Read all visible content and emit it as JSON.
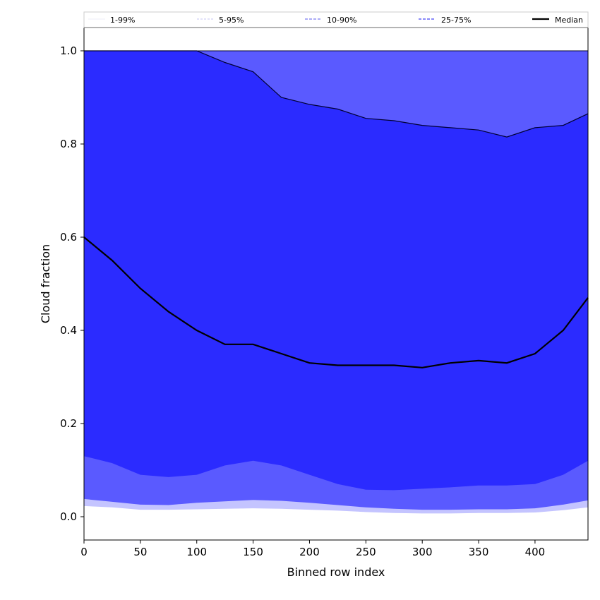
{
  "chart_data": {
    "type": "area",
    "title": "",
    "xlabel": "Binned row index",
    "ylabel": "Cloud fraction",
    "xlim": [
      0,
      447
    ],
    "ylim": [
      -0.05,
      1.05
    ],
    "x_ticks": [
      0,
      50,
      100,
      150,
      200,
      250,
      300,
      350,
      400
    ],
    "y_ticks": [
      0.0,
      0.2,
      0.4,
      0.6,
      0.8,
      1.0
    ],
    "y_tick_labels": [
      "0.0",
      "0.2",
      "0.4",
      "0.6",
      "0.8",
      "1.0"
    ],
    "grid": false,
    "legend_placement": "top (full-width row above plot)",
    "legend": [
      {
        "label": "1-99%",
        "style": "solid-thin",
        "color": "#e6e6f5"
      },
      {
        "label": "5-95%",
        "style": "dashed-thin",
        "color": "#b4b4f0"
      },
      {
        "label": "10-90%",
        "style": "dashed",
        "color": "#7a7af2"
      },
      {
        "label": "25-75%",
        "style": "dashed",
        "color": "#4545f5"
      },
      {
        "label": "Median",
        "style": "solid-thick",
        "color": "#000000"
      }
    ],
    "colors": {
      "band_1_99": "#ffffff",
      "band_5_95": "#c4c4ff",
      "band_10_90": "#5a5aff",
      "band_25_75": "#2b2bff",
      "median": "#000000"
    },
    "x": [
      0,
      25,
      50,
      75,
      100,
      125,
      150,
      175,
      200,
      225,
      250,
      275,
      300,
      325,
      350,
      375,
      400,
      425,
      447
    ],
    "series": [
      {
        "name": "Median",
        "values": [
          0.6,
          0.55,
          0.49,
          0.44,
          0.4,
          0.37,
          0.37,
          0.35,
          0.33,
          0.325,
          0.325,
          0.325,
          0.32,
          0.33,
          0.335,
          0.33,
          0.35,
          0.4,
          0.47
        ]
      },
      {
        "name": "25-75%",
        "lower": [
          0.13,
          0.115,
          0.09,
          0.085,
          0.09,
          0.11,
          0.12,
          0.11,
          0.09,
          0.07,
          0.058,
          0.057,
          0.06,
          0.063,
          0.067,
          0.067,
          0.07,
          0.09,
          0.12
        ],
        "upper": [
          1.0,
          1.0,
          1.0,
          1.0,
          1.0,
          0.975,
          0.955,
          0.9,
          0.885,
          0.875,
          0.855,
          0.85,
          0.84,
          0.835,
          0.83,
          0.815,
          0.835,
          0.84,
          0.865
        ]
      },
      {
        "name": "10-90%",
        "lower": [
          0.038,
          0.032,
          0.026,
          0.025,
          0.03,
          0.033,
          0.036,
          0.034,
          0.03,
          0.025,
          0.02,
          0.017,
          0.015,
          0.015,
          0.016,
          0.016,
          0.018,
          0.026,
          0.035
        ],
        "upper": [
          1.0,
          1.0,
          1.0,
          1.0,
          1.0,
          1.0,
          1.0,
          1.0,
          1.0,
          1.0,
          1.0,
          1.0,
          1.0,
          1.0,
          1.0,
          1.0,
          1.0,
          1.0,
          1.0
        ]
      },
      {
        "name": "5-95%",
        "lower": [
          0.023,
          0.02,
          0.015,
          0.015,
          0.016,
          0.017,
          0.018,
          0.017,
          0.015,
          0.013,
          0.01,
          0.008,
          0.007,
          0.007,
          0.008,
          0.008,
          0.009,
          0.014,
          0.02
        ],
        "upper": [
          1.0,
          1.0,
          1.0,
          1.0,
          1.0,
          1.0,
          1.0,
          1.0,
          1.0,
          1.0,
          1.0,
          1.0,
          1.0,
          1.0,
          1.0,
          1.0,
          1.0,
          1.0,
          1.0
        ]
      },
      {
        "name": "1-99%",
        "lower": [
          0.008,
          0.008,
          0.006,
          0.006,
          0.007,
          0.007,
          0.007,
          0.007,
          0.006,
          0.005,
          0.004,
          0.003,
          0.002,
          0.002,
          0.003,
          0.003,
          0.003,
          0.005,
          0.008
        ],
        "upper": [
          1.0,
          1.0,
          1.0,
          1.0,
          1.0,
          1.0,
          1.0,
          1.0,
          1.0,
          1.0,
          1.0,
          1.0,
          1.0,
          1.0,
          1.0,
          1.0,
          1.0,
          1.0,
          1.0
        ]
      }
    ]
  }
}
